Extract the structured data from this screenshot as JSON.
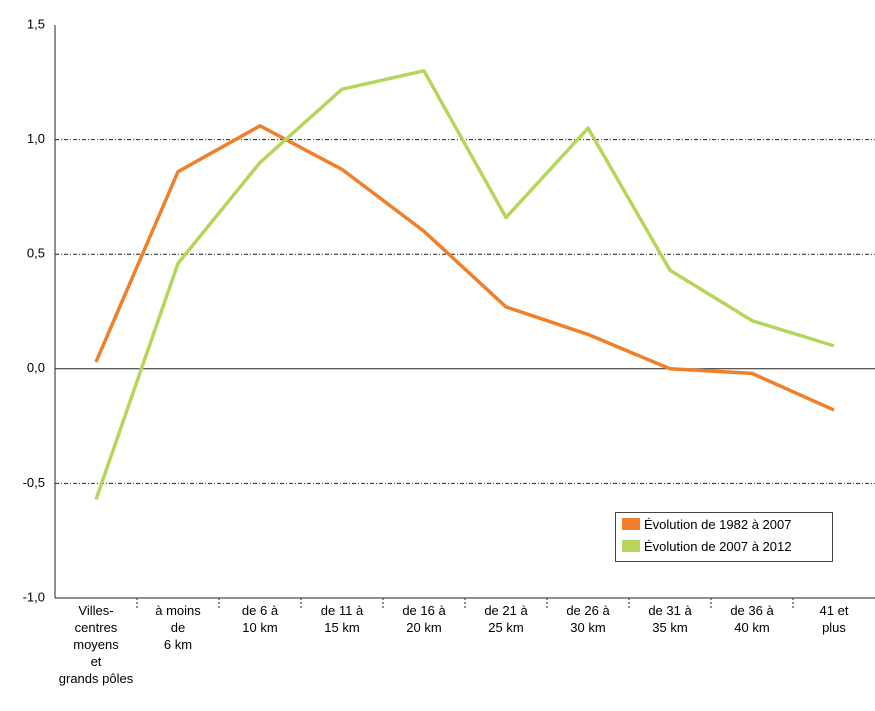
{
  "chart_data": {
    "type": "line",
    "categories": [
      "Villes-\ncentres\nmoyens\net\ngrands pôles",
      "à moins\nde\n6 km",
      "de 6 à\n10 km",
      "de 11 à\n15 km",
      "de 16 à\n20 km",
      "de 21 à\n25 km",
      "de 26 à\n30 km",
      "de 31 à\n35 km",
      "de 36 à\n40 km",
      "41 et\nplus"
    ],
    "series": [
      {
        "name": "Évolution de 1982 à 2007",
        "color": "#f07f2a",
        "values": [
          0.03,
          0.86,
          1.06,
          0.87,
          0.6,
          0.27,
          0.15,
          0.0,
          -0.02,
          -0.18
        ]
      },
      {
        "name": "Évolution de 2007 à 2012",
        "color": "#b5d65a",
        "values": [
          -0.57,
          0.46,
          0.9,
          1.22,
          1.3,
          0.66,
          1.05,
          0.43,
          0.21,
          0.1
        ]
      }
    ],
    "ylim": [
      -1.0,
      1.5
    ],
    "yticks": [
      {
        "value": -1.0,
        "label": "-1,0"
      },
      {
        "value": -0.5,
        "label": "-0,5"
      },
      {
        "value": 0,
        "label": "0,0"
      },
      {
        "value": 0.5,
        "label": "0,5"
      },
      {
        "value": 1.0,
        "label": "1,0"
      },
      {
        "value": 1.5,
        "label": "1,5"
      }
    ],
    "grid": true,
    "legend": "lower right"
  }
}
